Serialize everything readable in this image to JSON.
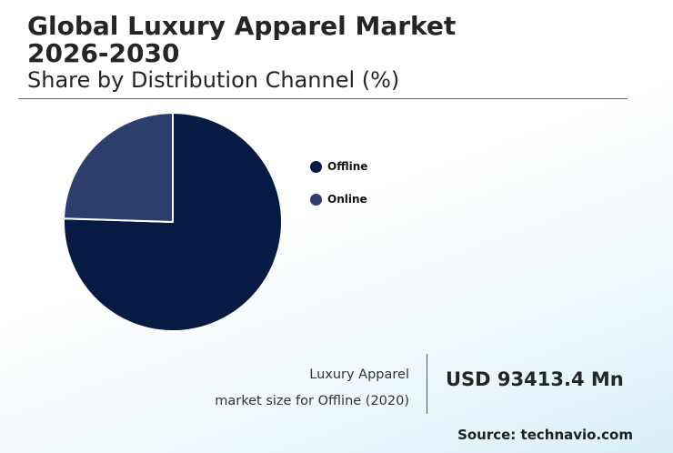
{
  "header": {
    "title": "Global Luxury Apparel Market 2026-2030",
    "subtitle": "Share by Distribution Channel (%)"
  },
  "chart_data": {
    "type": "pie",
    "title": "Global Luxury Apparel Market 2026-2030",
    "subtitle": "Share by Distribution Channel (%)",
    "categories": [
      "Offline",
      "Online"
    ],
    "values": [
      75.5,
      24.5
    ],
    "colors": [
      "#061a43",
      "#2b3e6e"
    ],
    "legend_position": "right",
    "slice_border_color": "#ffffff"
  },
  "stat": {
    "caption_line1": "Luxury Apparel",
    "caption_line2": "market size for Offline (2020)",
    "value": "USD 93413.4 Mn"
  },
  "source": "Source: technavio.com"
}
